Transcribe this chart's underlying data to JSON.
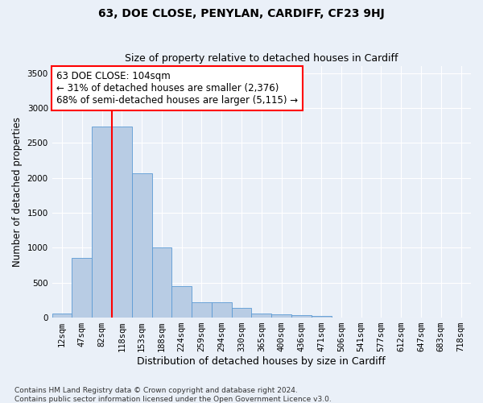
{
  "title": "63, DOE CLOSE, PENYLAN, CARDIFF, CF23 9HJ",
  "subtitle": "Size of property relative to detached houses in Cardiff",
  "xlabel": "Distribution of detached houses by size in Cardiff",
  "ylabel": "Number of detached properties",
  "bin_labels": [
    "12sqm",
    "47sqm",
    "82sqm",
    "118sqm",
    "153sqm",
    "188sqm",
    "224sqm",
    "259sqm",
    "294sqm",
    "330sqm",
    "365sqm",
    "400sqm",
    "436sqm",
    "471sqm",
    "506sqm",
    "541sqm",
    "577sqm",
    "612sqm",
    "647sqm",
    "683sqm",
    "718sqm"
  ],
  "bar_heights": [
    60,
    850,
    2730,
    2730,
    2070,
    1010,
    455,
    220,
    215,
    135,
    60,
    50,
    35,
    20,
    0,
    0,
    0,
    0,
    0,
    0,
    0
  ],
  "bar_color": "#b8cce4",
  "bar_edge_color": "#5b9bd5",
  "vline_x_index": 2.5,
  "vline_color": "#ff0000",
  "annotation_text": "63 DOE CLOSE: 104sqm\n← 31% of detached houses are smaller (2,376)\n68% of semi-detached houses are larger (5,115) →",
  "annotation_box_color": "#ff0000",
  "annotation_text_color": "#000000",
  "annotation_fontsize": 8.5,
  "ylim": [
    0,
    3600
  ],
  "yticks": [
    0,
    500,
    1000,
    1500,
    2000,
    2500,
    3000,
    3500
  ],
  "title_fontsize": 10,
  "subtitle_fontsize": 9,
  "xlabel_fontsize": 9,
  "ylabel_fontsize": 8.5,
  "tick_fontsize": 7.5,
  "footer_text": "Contains HM Land Registry data © Crown copyright and database right 2024.\nContains public sector information licensed under the Open Government Licence v3.0.",
  "footer_fontsize": 6.5,
  "background_color": "#eaf0f8",
  "plot_background_color": "#eaf0f8"
}
